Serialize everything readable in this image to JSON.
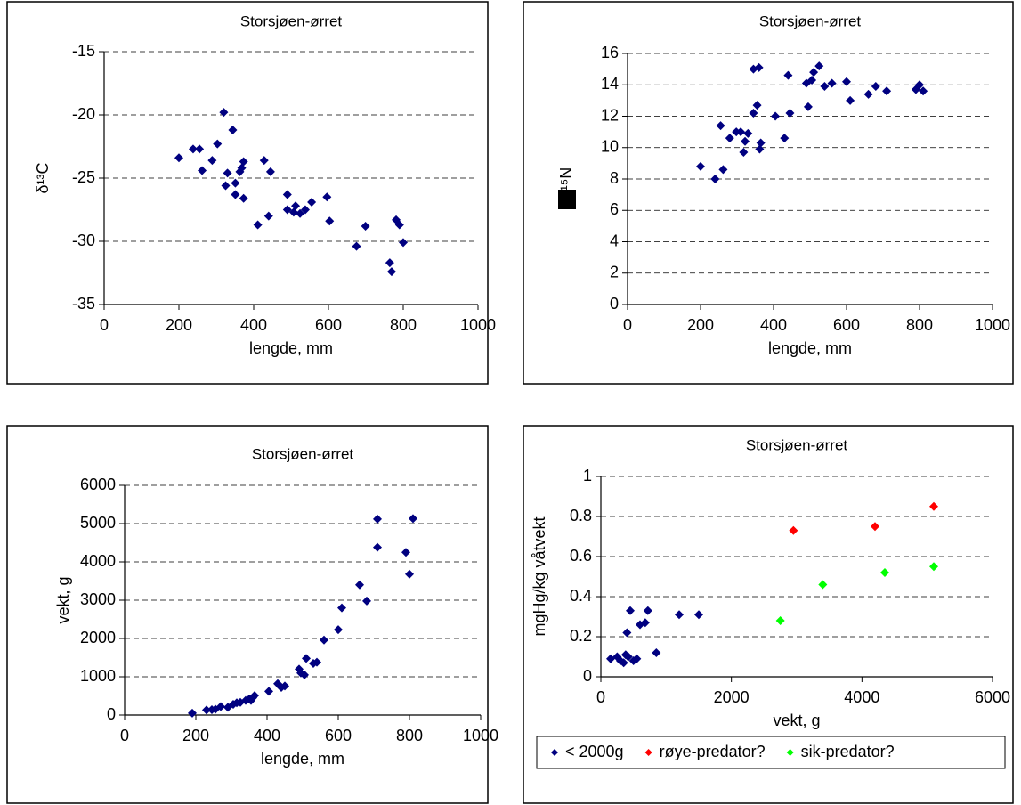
{
  "chart_data": [
    {
      "type": "scatter",
      "title": "Storsjøen-ørret",
      "x_label": "lengde, mm",
      "y_label": "δ¹³C",
      "xlim": [
        0,
        1000
      ],
      "xticks": [
        0,
        200,
        400,
        600,
        800,
        1000
      ],
      "ylim": [
        -35,
        -15
      ],
      "yticks": [
        -35,
        -30,
        -25,
        -20,
        -15
      ],
      "grid": true,
      "color": "#000080",
      "x": [
        200,
        238,
        255,
        262,
        289,
        303,
        320,
        325,
        330,
        344,
        351,
        351,
        363,
        368,
        373,
        373,
        411,
        428,
        440,
        445,
        490,
        490,
        507,
        512,
        524,
        538,
        555,
        596,
        603,
        675,
        699,
        764,
        769,
        781,
        790,
        800
      ],
      "values": [
        -23.4,
        -22.7,
        -22.7,
        -24.4,
        -23.6,
        -22.3,
        -19.8,
        -25.6,
        -24.6,
        -21.2,
        -26.3,
        -25.4,
        -24.5,
        -24.2,
        -26.6,
        -23.7,
        -28.7,
        -23.6,
        -28.0,
        -24.5,
        -26.3,
        -27.5,
        -27.7,
        -27.2,
        -27.8,
        -27.5,
        -26.9,
        -26.5,
        -28.4,
        -30.4,
        -28.8,
        -31.7,
        -32.4,
        -28.3,
        -28.7,
        -30.1
      ]
    },
    {
      "type": "scatter",
      "title": "Storsjøen-ørret",
      "x_label": "lengde, mm",
      "y_label": "¹⁵N",
      "xlim": [
        0,
        1000
      ],
      "xticks": [
        0,
        200,
        400,
        600,
        800,
        1000
      ],
      "ylim": [
        0,
        16
      ],
      "yticks": [
        0,
        2,
        4,
        6,
        8,
        10,
        12,
        14,
        16
      ],
      "grid": true,
      "color": "#000080",
      "x": [
        200,
        240,
        255,
        262,
        280,
        298,
        310,
        318,
        322,
        330,
        345,
        345,
        355,
        360,
        362,
        365,
        405,
        430,
        440,
        445,
        490,
        495,
        505,
        510,
        525,
        540,
        560,
        600,
        610,
        660,
        680,
        710,
        790,
        800,
        810
      ],
      "values": [
        8.8,
        8.0,
        11.4,
        8.6,
        10.6,
        11.0,
        11.0,
        9.7,
        10.4,
        10.9,
        12.2,
        15.0,
        12.7,
        15.1,
        9.9,
        10.3,
        12.0,
        10.6,
        14.6,
        12.2,
        14.1,
        12.6,
        14.3,
        14.8,
        15.2,
        13.9,
        14.1,
        14.2,
        13.0,
        13.4,
        13.9,
        13.6,
        13.7,
        14.0,
        13.6
      ]
    },
    {
      "type": "scatter",
      "title": "Storsjøen-ørret",
      "x_label": "lengde, mm",
      "y_label": "vekt, g",
      "xlim": [
        0,
        1000
      ],
      "xticks": [
        0,
        200,
        400,
        600,
        800,
        1000
      ],
      "ylim": [
        0,
        6000
      ],
      "yticks": [
        0,
        1000,
        2000,
        3000,
        4000,
        5000,
        6000
      ],
      "grid": true,
      "color": "#000080",
      "x": [
        190,
        230,
        245,
        255,
        270,
        290,
        305,
        315,
        325,
        340,
        350,
        355,
        360,
        365,
        405,
        430,
        440,
        450,
        490,
        495,
        505,
        510,
        530,
        540,
        560,
        600,
        610,
        660,
        680,
        710,
        710,
        790,
        800,
        810
      ],
      "values": [
        50,
        130,
        140,
        150,
        220,
        200,
        280,
        320,
        330,
        380,
        420,
        380,
        450,
        510,
        620,
        820,
        720,
        760,
        1200,
        1100,
        1050,
        1480,
        1350,
        1380,
        1960,
        2230,
        2800,
        3400,
        2980,
        5120,
        4380,
        4250,
        3680,
        5130
      ]
    },
    {
      "type": "scatter",
      "title": "Storsjøen-ørret",
      "x_label": "vekt, g",
      "y_label": "mgHg/kg våtvekt",
      "xlim": [
        0,
        6000
      ],
      "xticks": [
        0,
        2000,
        4000,
        6000
      ],
      "ylim": [
        0,
        1
      ],
      "yticks": [
        0,
        0.2,
        0.4,
        0.6,
        0.8,
        1
      ],
      "grid": true,
      "legend": "bottom",
      "series": [
        {
          "name": "< 2000g",
          "color": "#000080",
          "x": [
            150,
            250,
            300,
            350,
            380,
            400,
            420,
            450,
            500,
            550,
            600,
            680,
            720,
            850,
            1200,
            1500
          ],
          "values": [
            0.09,
            0.1,
            0.08,
            0.07,
            0.11,
            0.22,
            0.1,
            0.33,
            0.08,
            0.09,
            0.26,
            0.27,
            0.33,
            0.12,
            0.31,
            0.31
          ]
        },
        {
          "name": "røye-predator?",
          "color": "#ff0000",
          "x": [
            2950,
            4200,
            5100
          ],
          "values": [
            0.73,
            0.75,
            0.85
          ]
        },
        {
          "name": "sik-predator?",
          "color": "#00ff00",
          "x": [
            2750,
            3400,
            4350,
            5100
          ],
          "values": [
            0.28,
            0.46,
            0.52,
            0.55
          ]
        }
      ]
    }
  ]
}
